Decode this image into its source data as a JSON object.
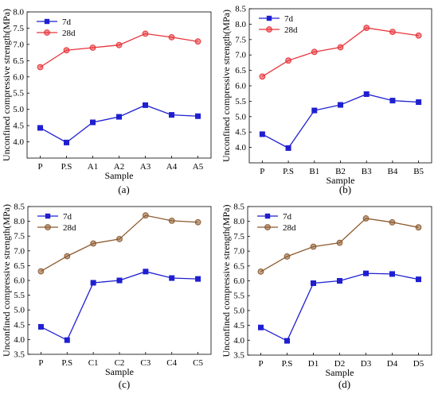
{
  "figure": {
    "panels": [
      "a",
      "b",
      "c",
      "d"
    ]
  },
  "chart_data": [
    {
      "panel_label": "(a)",
      "type": "line",
      "xlabel": "Sample",
      "ylabel": "Unconfined compressive strength(MPa)",
      "categories": [
        "P",
        "P.S",
        "A1",
        "A2",
        "A3",
        "A4",
        "A5"
      ],
      "ylim": [
        3.5,
        8.0
      ],
      "yticks": [
        "4.0",
        "4.5",
        "5.0",
        "5.5",
        "6.0",
        "6.5",
        "7.0",
        "7.5",
        "8.0"
      ],
      "legend_position": "top-left",
      "series": [
        {
          "name": "7d",
          "marker": "square",
          "color": "#1f1fd1",
          "values": [
            4.43,
            3.98,
            4.6,
            4.77,
            5.13,
            4.83,
            4.79
          ]
        },
        {
          "name": "28d",
          "marker": "circle",
          "color": "#e8343a",
          "values": [
            6.3,
            6.82,
            6.9,
            6.98,
            7.33,
            7.22,
            7.09
          ]
        }
      ]
    },
    {
      "panel_label": "(b)",
      "type": "line",
      "xlabel": "Sample",
      "ylabel": "Unconfined compressive strength(MPa)",
      "categories": [
        "P",
        "P.S",
        "B1",
        "B2",
        "B3",
        "B4",
        "B5"
      ],
      "ylim": [
        3.5,
        8.5
      ],
      "yticks": [
        "4.0",
        "4.5",
        "5.0",
        "5.5",
        "6.0",
        "6.5",
        "7.0",
        "7.5",
        "8.0",
        "8.5"
      ],
      "legend_position": "top-left",
      "series": [
        {
          "name": "7d",
          "marker": "square",
          "color": "#1f1fd1",
          "values": [
            4.43,
            3.98,
            5.2,
            5.38,
            5.73,
            5.52,
            5.47
          ]
        },
        {
          "name": "28d",
          "marker": "circle",
          "color": "#e8343a",
          "values": [
            6.3,
            6.82,
            7.1,
            7.25,
            7.88,
            7.75,
            7.63
          ]
        }
      ]
    },
    {
      "panel_label": "(c)",
      "type": "line",
      "xlabel": "Sample",
      "ylabel": "Unconfined compressive strength(MPa)",
      "categories": [
        "P",
        "P.S",
        "C1",
        "C2",
        "C3",
        "C4",
        "C5"
      ],
      "ylim": [
        3.5,
        8.5
      ],
      "yticks": [
        "3.5",
        "4.0",
        "4.5",
        "5.0",
        "5.5",
        "6.0",
        "6.5",
        "7.0",
        "7.5",
        "8.0",
        "8.5"
      ],
      "legend_position": "top-left",
      "series": [
        {
          "name": "7d",
          "marker": "square",
          "color": "#1f1fd1",
          "values": [
            4.43,
            3.98,
            5.92,
            6.0,
            6.3,
            6.08,
            6.05
          ]
        },
        {
          "name": "28d",
          "marker": "circle",
          "color": "#8c5a2e",
          "values": [
            6.31,
            6.82,
            7.25,
            7.4,
            8.2,
            8.02,
            7.97
          ]
        }
      ]
    },
    {
      "panel_label": "(d)",
      "type": "line",
      "xlabel": "Sample",
      "ylabel": "Unconfined compressive strength(MPa)",
      "categories": [
        "P",
        "P.S",
        "D1",
        "D2",
        "D3",
        "D4",
        "D5"
      ],
      "ylim": [
        3.5,
        8.5
      ],
      "yticks": [
        "3.5",
        "4.0",
        "4.5",
        "5.0",
        "5.5",
        "6.0",
        "6.5",
        "7.0",
        "7.5",
        "8.0",
        "8.5"
      ],
      "legend_position": "top-left",
      "series": [
        {
          "name": "7d",
          "marker": "square",
          "color": "#1f1fd1",
          "values": [
            4.43,
            3.98,
            5.92,
            6.0,
            6.25,
            6.23,
            6.05
          ]
        },
        {
          "name": "28d",
          "marker": "circle",
          "color": "#8c5a2e",
          "values": [
            6.31,
            6.82,
            7.15,
            7.28,
            8.1,
            7.97,
            7.8
          ]
        }
      ]
    }
  ]
}
